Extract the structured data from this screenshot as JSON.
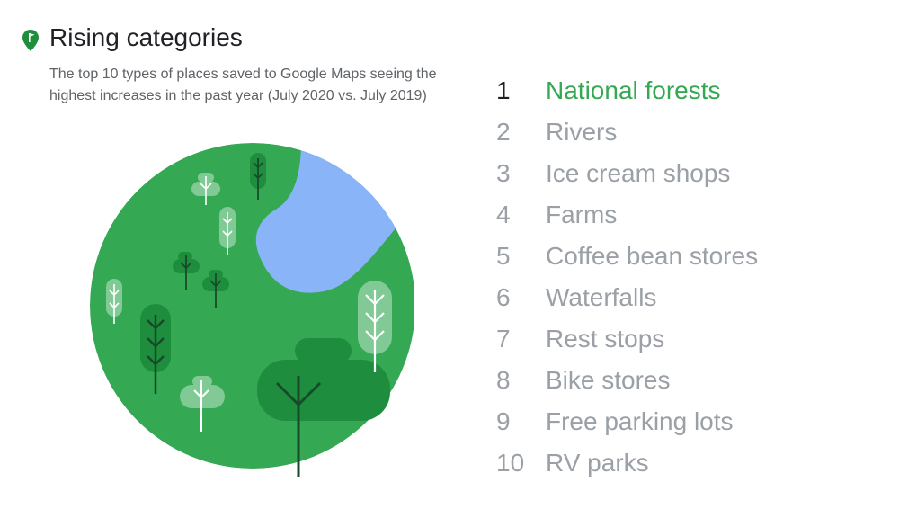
{
  "header": {
    "title": "Rising categories",
    "subtitle": "The top 10 types of places saved to Google Maps seeing the highest increases in the past year (July 2020 vs. July 2019)",
    "icon": "map-pin-icon"
  },
  "illustration": {
    "icon": "forest-river-illustration"
  },
  "ranking": {
    "items": [
      {
        "rank": "1",
        "label": "National forests"
      },
      {
        "rank": "2",
        "label": "Rivers"
      },
      {
        "rank": "3",
        "label": "Ice cream shops"
      },
      {
        "rank": "4",
        "label": "Farms"
      },
      {
        "rank": "5",
        "label": "Coffee bean stores"
      },
      {
        "rank": "6",
        "label": "Waterfalls"
      },
      {
        "rank": "7",
        "label": "Rest stops"
      },
      {
        "rank": "8",
        "label": "Bike stores"
      },
      {
        "rank": "9",
        "label": "Free parking lots"
      },
      {
        "rank": "10",
        "label": "RV parks"
      }
    ]
  },
  "colors": {
    "accent": "#34a853",
    "forest": "#34a853",
    "river": "#8ab4f8",
    "dark_tree": "#1e8e3e",
    "light_tree": "#81c995",
    "title_text": "#202124",
    "muted_text": "#9aa0a6",
    "subtitle_text": "#5f6368"
  }
}
